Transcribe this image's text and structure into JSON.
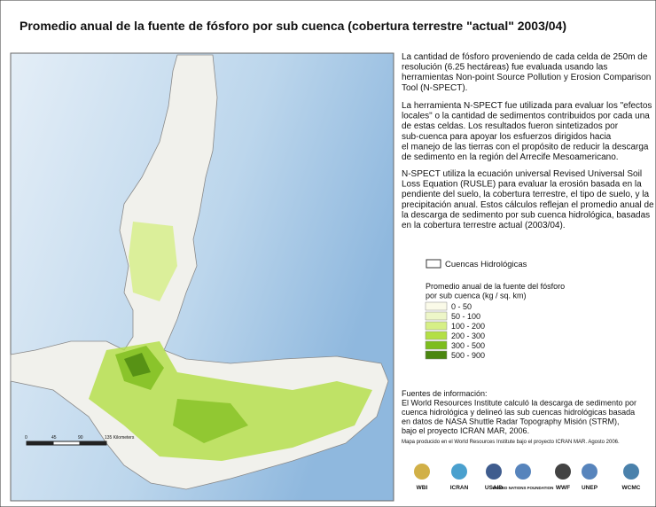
{
  "title": "Promedio anual de la fuente de fósforo por sub cuenca (cobertura terrestre \"actual\" 2003/04)",
  "description": [
    [
      "La cantidad de fósforo proveniendo de cada celda de 250m de",
      "resolución (6.25 hectáreas) fue evaluada usando las",
      "herramientas Non-point Source Pollution y Erosion Comparison",
      "Tool (N-SPECT)."
    ],
    [
      "La herramienta N-SPECT fue utilizada para evaluar los \"efectos",
      "locales\" o la cantidad de sedimentos contribuidos por cada una",
      "de estas celdas. Los resultados fueron sintetizados por",
      "sub-cuenca para apoyar los esfuerzos dirigidos hacia",
      "el manejo de las tierras con el propósito de reducir la descarga",
      "de sedimento en la región del Arrecife Mesoamericano."
    ],
    [
      "N-SPECT utiliza la ecuación universal Revised Universal Soil",
      "Loss Equation (RUSLE) para evaluar la erosión basada en la",
      "pendiente del suelo, la cobertura terrestre, el tipo de suelo, y la",
      "precipitación anual. Estos cálculos reflejan el promedio anual de",
      "la descarga de sedimento por sub cuenca hidrológica, basadas",
      "en la cobertura terrestre actual (2003/04)."
    ]
  ],
  "legend": {
    "boundary_label": "Cuencas Hidrológicas",
    "title": [
      "Promedio anual de la fuente del fósforo",
      "por sub cuenca (kg / sq. km)"
    ],
    "classes": [
      {
        "label": "0 - 50",
        "color": "#fafae8"
      },
      {
        "label": "50 - 100",
        "color": "#edf6c8"
      },
      {
        "label": "100 - 200",
        "color": "#d6ef86"
      },
      {
        "label": "200 - 300",
        "color": "#b3df45"
      },
      {
        "label": "300 - 500",
        "color": "#7dbd1d"
      },
      {
        "label": "500 - 900",
        "color": "#4a8610"
      }
    ]
  },
  "sources": [
    "Fuentes de información:",
    "El World Resources Institute calculó la descarga de sedimento por",
    "cuenca hidrológica y delineó las sub cuencas hidrológicas basada",
    "en datos de NASA Shuttle Radar Topography Misión (STRM),",
    "bajo el proyecto ICRAN MAR, 2006."
  ],
  "credit": "Mapa producido en el World Resources Institute bajo el proyecto ICRAN MAR. Agosto 2006.",
  "scale_bar": [
    "0",
    "45",
    "90",
    "135 Kilometers"
  ],
  "logos": [
    "WBI",
    "ICRAN",
    "USAID",
    "UNITED NATIONS FOUNDATION",
    "WWF",
    "UNEP",
    "WCMC"
  ]
}
